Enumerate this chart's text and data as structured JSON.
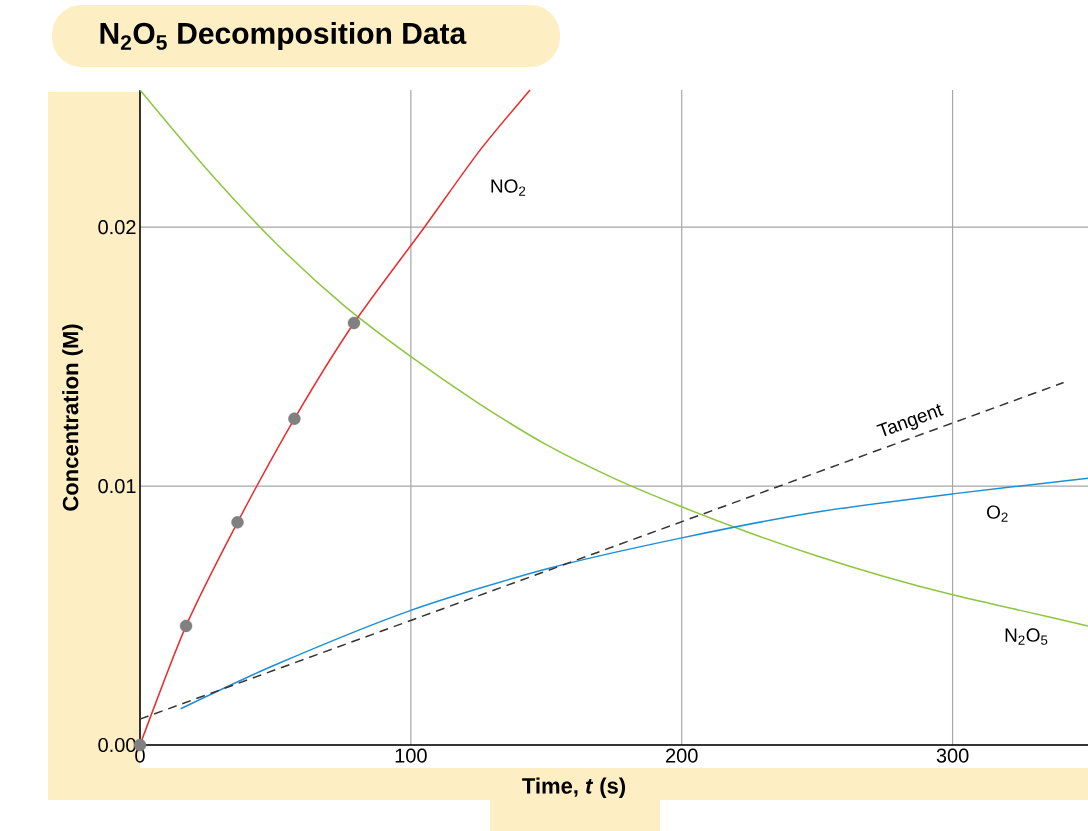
{
  "chart_data": {
    "type": "line",
    "title": "**N$_{2}$O$_{5}$ Decomposition Data**",
    "xlabel": "Time, *t* (s)",
    "ylabel": "Concentration (M)",
    "xlim": [
      0,
      350
    ],
    "ylim": [
      0,
      0.0253
    ],
    "xticks": [
      0,
      100,
      200,
      300
    ],
    "yticks": [
      {
        "value": 0,
        "label": "0.00"
      },
      0.01,
      0.02
    ],
    "grid": true,
    "series": [
      {
        "name": "N$_{2}$O$_{5}$",
        "color": "#8cc63f",
        "x": [
          0,
          25,
          50,
          75,
          100,
          125,
          150,
          175,
          200,
          225,
          250,
          275,
          300,
          325,
          350
        ],
        "values": [
          0.0253,
          0.0222,
          0.0194,
          0.017,
          0.015,
          0.0132,
          0.0116,
          0.0103,
          0.0092,
          0.0082,
          0.0073,
          0.0065,
          0.0058,
          0.0052,
          0.0046
        ]
      },
      {
        "name": "NO$_{2}$",
        "color": "#ee2a2a",
        "x": [
          0,
          17,
          36,
          57,
          79,
          105,
          125,
          144
        ],
        "values": [
          0,
          0.0046,
          0.0086,
          0.0126,
          0.0163,
          0.02,
          0.0229,
          0.0253
        ]
      },
      {
        "name": "O$_{2}$",
        "color": "#1b8fd8",
        "x": [
          15,
          50,
          100,
          150,
          200,
          250,
          300,
          350
        ],
        "values": [
          0.0014,
          0.0031,
          0.0052,
          0.0068,
          0.008,
          0.009,
          0.0097,
          0.0103
        ]
      },
      {
        "name": "Tangent",
        "color": "#333333",
        "line_style": "dashed",
        "x": [
          0,
          341
        ],
        "values": [
          0.001,
          0.014
        ]
      },
      {
        "type": "scatter",
        "color": "#808080",
        "x": [
          0,
          17,
          36,
          57,
          79
        ],
        "values": [
          0,
          0.0046,
          0.0086,
          0.0126,
          0.0163
        ]
      }
    ]
  }
}
